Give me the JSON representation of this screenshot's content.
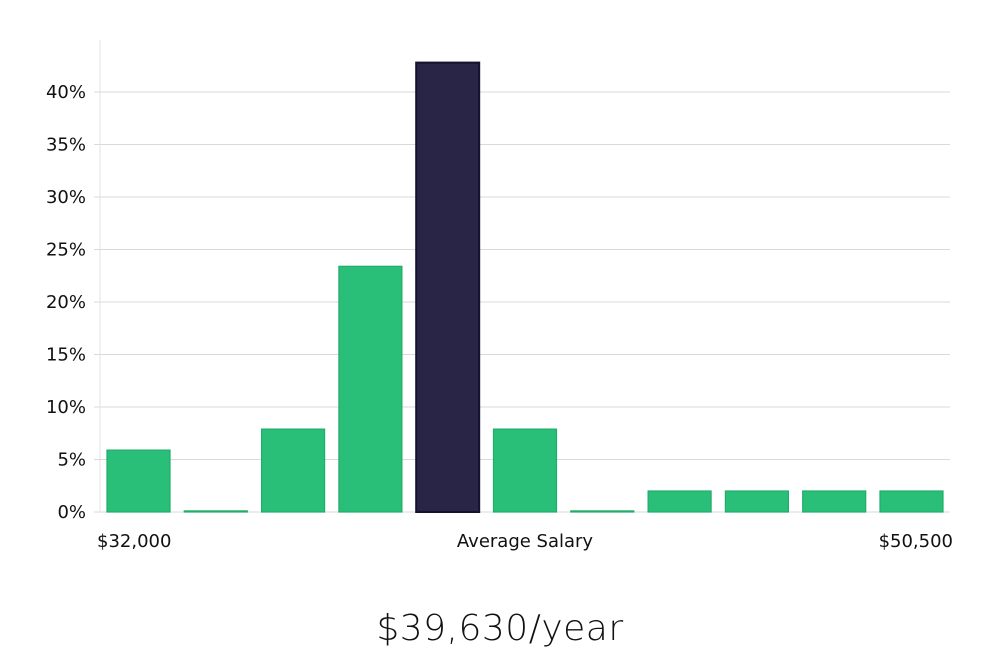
{
  "chart_data": {
    "type": "bar",
    "title": "",
    "xlabel": "Average Salary",
    "ylabel": "",
    "x_range_labels": {
      "min": "$32,000",
      "max": "$50,500"
    },
    "ylim": [
      0,
      45
    ],
    "yticks": [
      0,
      5,
      10,
      15,
      20,
      25,
      30,
      35,
      40
    ],
    "ytick_suffix": "%",
    "grid": true,
    "values": [
      5.9,
      0.1,
      7.9,
      23.4,
      42.8,
      7.9,
      0.1,
      2.0,
      2.0,
      2.0,
      2.0
    ],
    "highlight_index": 4,
    "colors": {
      "bar": "#2abf78",
      "bar_edge": "#1fae69",
      "highlight": "#282546",
      "highlight_edge": "#14122e"
    }
  },
  "summary": {
    "average_salary": "$39,630/year"
  }
}
